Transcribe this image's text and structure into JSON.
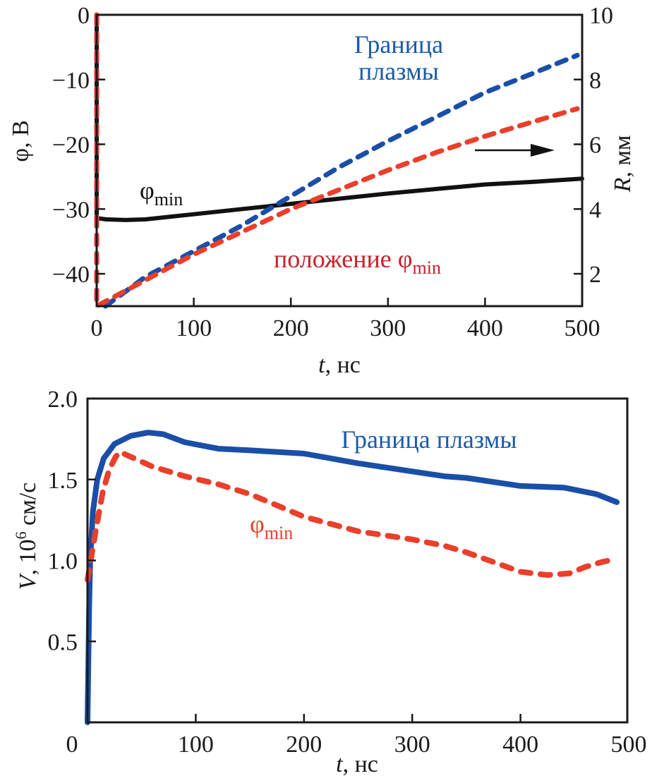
{
  "chart_data": [
    {
      "type": "line",
      "title": "",
      "xlabel": "t, нс",
      "xlabel_italic_part": "t",
      "xlabel_rest": ", нс",
      "ylabel": "φ, В",
      "y2label": "R, мм",
      "y2label_italic_part": "R",
      "y2label_rest": ", мм",
      "xlim": [
        0,
        500
      ],
      "ylim": [
        -45,
        0
      ],
      "y2lim": [
        1,
        10
      ],
      "xticks": [
        0,
        100,
        200,
        300,
        400,
        500
      ],
      "yticks": [
        0,
        -10,
        -20,
        -30,
        -40
      ],
      "ytick_labels": [
        "0",
        "−10",
        "−20",
        "−30",
        "−40"
      ],
      "y2ticks": [
        10,
        8,
        6,
        4,
        2
      ],
      "grid": false,
      "series": [
        {
          "name": "φmin",
          "axis": "left",
          "style": "solid",
          "color": "#111111",
          "x": [
            0,
            0,
            10,
            30,
            50,
            100,
            150,
            200,
            250,
            300,
            350,
            400,
            450,
            500
          ],
          "y": [
            0,
            -31.4,
            -31.6,
            -31.7,
            -31.6,
            -30.8,
            -30.0,
            -29.2,
            -28.4,
            -27.6,
            -26.9,
            -26.2,
            -25.8,
            -25.3
          ]
        },
        {
          "name": "Граница плазмы",
          "axis": "right",
          "style": "dashed",
          "color": "#1a4fa8",
          "x": [
            9,
            50,
            100,
            150,
            200,
            250,
            300,
            350,
            400,
            450,
            495
          ],
          "y": [
            1.0,
            1.9,
            2.7,
            3.5,
            4.4,
            5.3,
            6.1,
            6.85,
            7.6,
            8.2,
            8.75
          ]
        },
        {
          "name": "положение φmin",
          "axis": "right",
          "style": "dashed",
          "color": "#ea3f2a",
          "x": [
            0,
            0,
            50,
            100,
            150,
            200,
            250,
            300,
            350,
            400,
            450,
            495
          ],
          "y": [
            10,
            1.0,
            1.8,
            2.6,
            3.3,
            4.0,
            4.6,
            5.2,
            5.75,
            6.25,
            6.7,
            7.1
          ]
        }
      ],
      "annotations": [
        {
          "text": "Граница",
          "color": "#1a5aa8"
        },
        {
          "text": "плазмы",
          "color": "#1a5aa8"
        },
        {
          "text": "φ",
          "sub": "min",
          "color": "#111111"
        },
        {
          "text": "положение φ",
          "sub": "min",
          "color": "#c8202a"
        }
      ],
      "arrow": {
        "direction": "right",
        "meaning": "refers to right axis R"
      }
    },
    {
      "type": "line",
      "title": "",
      "xlabel": "t, нс",
      "xlabel_italic_part": "t",
      "xlabel_rest": ", нс",
      "ylabel": "V, 10^6 см/с",
      "ylabel_italic_part": "V",
      "ylabel_mid": ", 10",
      "ylabel_sup": "6",
      "ylabel_rest": " см/с",
      "xlim": [
        0,
        500
      ],
      "ylim": [
        0,
        2.0
      ],
      "xticks": [
        0,
        100,
        200,
        300,
        400,
        500
      ],
      "yticks": [
        2.0,
        1.5,
        1.0,
        0.5
      ],
      "ytick_labels": [
        "2.0",
        "1.5",
        "1.0",
        "0.5"
      ],
      "grid": false,
      "series": [
        {
          "name": "Граница плазмы",
          "style": "solid",
          "color": "#1a4fa8",
          "x": [
            0,
            1.5,
            2.5,
            5,
            9,
            15,
            25,
            40,
            56,
            70,
            90,
            121,
            150,
            200,
            250,
            300,
            330,
            350,
            400,
            440,
            470,
            489
          ],
          "y": [
            0,
            0.7,
            1.0,
            1.3,
            1.5,
            1.63,
            1.72,
            1.77,
            1.79,
            1.78,
            1.73,
            1.69,
            1.68,
            1.66,
            1.6,
            1.55,
            1.52,
            1.51,
            1.46,
            1.45,
            1.41,
            1.36
          ]
        },
        {
          "name": "φmin",
          "style": "dashed",
          "color": "#ea3f2a",
          "x": [
            0,
            3,
            8,
            14,
            20,
            26,
            30,
            40,
            60,
            90,
            121,
            150,
            200,
            250,
            300,
            330,
            350,
            400,
            425,
            445,
            460,
            475,
            489
          ],
          "y": [
            0.88,
            1.0,
            1.2,
            1.42,
            1.56,
            1.64,
            1.67,
            1.64,
            1.58,
            1.52,
            1.47,
            1.41,
            1.27,
            1.18,
            1.13,
            1.09,
            1.05,
            0.93,
            0.91,
            0.92,
            0.96,
            0.99,
            1.01
          ]
        }
      ],
      "annotations": [
        {
          "text": "Граница плазмы",
          "color": "#1a5aa8"
        },
        {
          "text": "φ",
          "sub": "min",
          "color": "#ea3f2a"
        }
      ]
    }
  ]
}
